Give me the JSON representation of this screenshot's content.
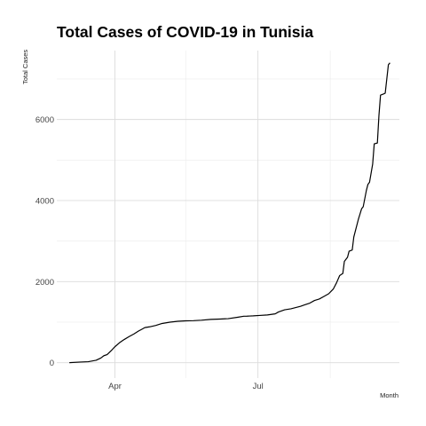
{
  "chart_data": {
    "type": "line",
    "title": "Total Cases of COVID-19 in Tunisia",
    "xlabel": "Month",
    "ylabel": "Total Cases",
    "grid": true,
    "legend": "none",
    "x_ticks": [
      {
        "label": "Apr",
        "date": "2020-04-01"
      },
      {
        "label": "Jul",
        "date": "2020-07-01"
      }
    ],
    "x_minor_gridlines": [
      "2020-05-16",
      "2020-08-16"
    ],
    "y_ticks": [
      0,
      2000,
      4000,
      6000
    ],
    "y_minor_gridlines": [
      1000,
      3000,
      5000,
      7000
    ],
    "xlim": [
      "2020-02-24",
      "2020-09-29"
    ],
    "ylim": [
      -380,
      7700
    ],
    "series": [
      {
        "color": "#000000",
        "x": [
          "2020-03-03",
          "2020-03-10",
          "2020-03-15",
          "2020-03-20",
          "2020-03-23",
          "2020-03-25",
          "2020-03-27",
          "2020-03-30",
          "2020-04-01",
          "2020-04-04",
          "2020-04-07",
          "2020-04-10",
          "2020-04-13",
          "2020-04-16",
          "2020-04-18",
          "2020-04-20",
          "2020-04-23",
          "2020-04-27",
          "2020-05-01",
          "2020-05-06",
          "2020-05-11",
          "2020-05-16",
          "2020-05-21",
          "2020-05-26",
          "2020-06-01",
          "2020-06-07",
          "2020-06-12",
          "2020-06-18",
          "2020-06-22",
          "2020-06-24",
          "2020-06-26",
          "2020-06-28",
          "2020-07-02",
          "2020-07-07",
          "2020-07-12",
          "2020-07-14",
          "2020-07-18",
          "2020-07-22",
          "2020-07-25",
          "2020-07-28",
          "2020-07-31",
          "2020-08-03",
          "2020-08-06",
          "2020-08-09",
          "2020-08-12",
          "2020-08-15",
          "2020-08-18",
          "2020-08-20",
          "2020-08-22",
          "2020-08-24",
          "2020-08-25",
          "2020-08-27",
          "2020-08-28",
          "2020-08-30",
          "2020-08-31",
          "2020-09-02",
          "2020-09-03",
          "2020-09-05",
          "2020-09-06",
          "2020-09-08",
          "2020-09-09",
          "2020-09-10",
          "2020-09-12",
          "2020-09-13",
          "2020-09-15",
          "2020-09-16",
          "2020-09-17",
          "2020-09-19",
          "2020-09-20",
          "2020-09-22",
          "2020-09-23"
        ],
        "y": [
          1,
          15,
          24,
          60,
          114,
          173,
          200,
          312,
          395,
          495,
          574,
          643,
          707,
          780,
          822,
          866,
          884,
          918,
          967,
          1000,
          1022,
          1032,
          1037,
          1048,
          1068,
          1076,
          1086,
          1120,
          1146,
          1148,
          1152,
          1155,
          1165,
          1178,
          1205,
          1250,
          1305,
          1330,
          1360,
          1390,
          1430,
          1470,
          1535,
          1570,
          1635,
          1700,
          1820,
          1970,
          2150,
          2200,
          2500,
          2600,
          2750,
          2780,
          3100,
          3400,
          3550,
          3800,
          3850,
          4250,
          4400,
          4450,
          4900,
          5400,
          5420,
          6100,
          6600,
          6630,
          6650,
          7350,
          7400
        ]
      }
    ]
  }
}
